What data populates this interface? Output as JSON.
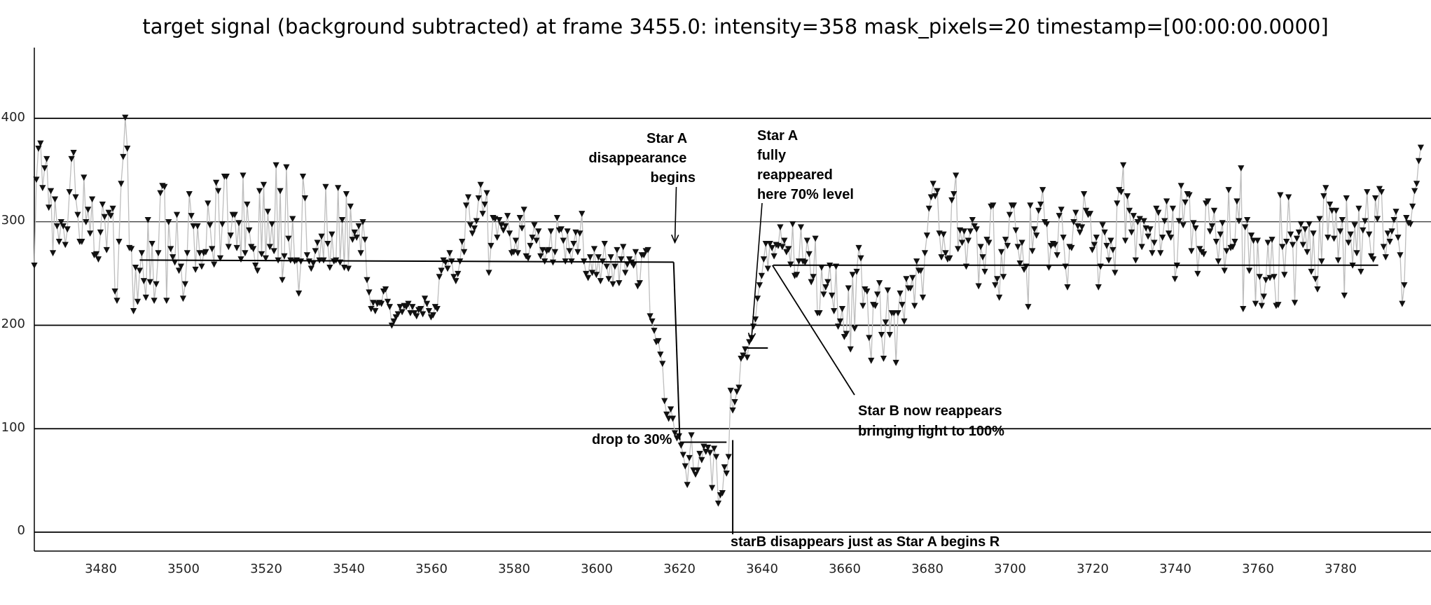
{
  "chart_data": {
    "type": "scatter",
    "title": "target signal (background subtracted) at frame 3455.0: intensity=358 mask_pixels=20 timestamp=[00:00:00.0000]",
    "xlabel": "",
    "ylabel": "",
    "xlim": [
      3461,
      3788
    ],
    "ylim": [
      -10,
      460
    ],
    "grid": "horizontal",
    "y_gridlines": [
      0,
      100,
      200,
      300,
      400
    ],
    "x_ticks": [
      3480,
      3500,
      3520,
      3540,
      3560,
      3580,
      3600,
      3620,
      3640,
      3660,
      3680,
      3700,
      3720,
      3740,
      3760,
      3780
    ],
    "y_ticks": [
      0,
      100,
      200,
      300,
      400
    ],
    "x_tick_labels": [
      "3480",
      "3500",
      "3520",
      "3540",
      "3560",
      "3580",
      "3600",
      "3620",
      "3640",
      "3660",
      "3680",
      "3700",
      "3720",
      "3740",
      "3760",
      "3780"
    ],
    "y_tick_labels": [
      "0",
      "100",
      "200",
      "300",
      "400"
    ],
    "marker": "triangle-down",
    "series": [
      {
        "x_start": 3461,
        "x_step": 0.5,
        "values": [
          258,
          341,
          371,
          376,
          333,
          352,
          361,
          314,
          330,
          270,
          322,
          296,
          281,
          300,
          296,
          278,
          293,
          329,
          361,
          367,
          324,
          307,
          281,
          281,
          343,
          300,
          312,
          289,
          322,
          268,
          269,
          264,
          290,
          317,
          305,
          273,
          309,
          306,
          313,
          233,
          224,
          281,
          337,
          363,
          401,
          371,
          275,
          274,
          214,
          256,
          223,
          253,
          270,
          243,
          227,
          302,
          242,
          279,
          224,
          240,
          270,
          328,
          335,
          334,
          224,
          300,
          274,
          266,
          261,
          307,
          253,
          257,
          226,
          240,
          270,
          327,
          306,
          296,
          254,
          296,
          270,
          257,
          270,
          271,
          318,
          297,
          274,
          259,
          338,
          330,
          265,
          298,
          344,
          344,
          276,
          287,
          307,
          307,
          275,
          299,
          264,
          345,
          270,
          317,
          292,
          276,
          274,
          258,
          253,
          330,
          269,
          336,
          265,
          310,
          276,
          298,
          272,
          355,
          263,
          330,
          244,
          267,
          353,
          284,
          263,
          303,
          262,
          263,
          231,
          262,
          344,
          323,
          268,
          262,
          255,
          260,
          272,
          280,
          263,
          286,
          263,
          334,
          279,
          256,
          288,
          262,
          263,
          333,
          261,
          302,
          256,
          327,
          255,
          315,
          283,
          290,
          285,
          296,
          270,
          300,
          283,
          244,
          232,
          216,
          222,
          214,
          221,
          222,
          221,
          233,
          235,
          223,
          218,
          200,
          204,
          208,
          211,
          218,
          213,
          219,
          218,
          221,
          212,
          218,
          212,
          209,
          215,
          216,
          211,
          226,
          221,
          214,
          208,
          210,
          218,
          216,
          247,
          253,
          263,
          261,
          255,
          270,
          262,
          247,
          243,
          250,
          262,
          281,
          271,
          316,
          324,
          297,
          289,
          294,
          301,
          323,
          336,
          308,
          317,
          328,
          251,
          277,
          304,
          303,
          285,
          302,
          297,
          292,
          296,
          306,
          289,
          270,
          271,
          282,
          270,
          304,
          294,
          312,
          267,
          265,
          277,
          285,
          297,
          282,
          291,
          267,
          273,
          262,
          272,
          273,
          291,
          261,
          271,
          304,
          292,
          293,
          282,
          262,
          291,
          272,
          262,
          279,
          290,
          271,
          289,
          308,
          262,
          250,
          246,
          266,
          251,
          274,
          249,
          266,
          243,
          262,
          279,
          257,
          245,
          266,
          240,
          257,
          273,
          241,
          264,
          276,
          251,
          259,
          264,
          261,
          258,
          271,
          238,
          241,
          268,
          268,
          272,
          273,
          209,
          204,
          195,
          184,
          185,
          172,
          163,
          127,
          114,
          110,
          119,
          110,
          96,
          91,
          93,
          84,
          75,
          64,
          46,
          72,
          94,
          60,
          56,
          60,
          76,
          70,
          83,
          78,
          82,
          77,
          43,
          81,
          73,
          28,
          36,
          38,
          63,
          57,
          73,
          137,
          118,
          126,
          136,
          140,
          168,
          171,
          177,
          169,
          184,
          188,
          199,
          206,
          226,
          239,
          248,
          264,
          279,
          255,
          279,
          275,
          267,
          278,
          277,
          295,
          276,
          282,
          271,
          274,
          259,
          298,
          248,
          249,
          262,
          295,
          262,
          261,
          282,
          269,
          242,
          247,
          284,
          212,
          212,
          256,
          230,
          237,
          242,
          258,
          229,
          214,
          257,
          199,
          204,
          216,
          189,
          192,
          236,
          177,
          249,
          197,
          252,
          275,
          265,
          219,
          235,
          233,
          188,
          166,
          220,
          219,
          230,
          241,
          191,
          168,
          203,
          234,
          191,
          212,
          212,
          164,
          212,
          231,
          220,
          204,
          245,
          236,
          236,
          246,
          219,
          262,
          253,
          253,
          227,
          270,
          287,
          313,
          324,
          337,
          325,
          330,
          289,
          266,
          288,
          270,
          264,
          265,
          321,
          327,
          345,
          274,
          292,
          280,
          291,
          257,
          282,
          291,
          302,
          296,
          293,
          238,
          276,
          266,
          252,
          283,
          280,
          315,
          316,
          239,
          245,
          227,
          271,
          247,
          283,
          277,
          307,
          316,
          316,
          292,
          276,
          260,
          280,
          254,
          257,
          218,
          316,
          272,
          293,
          287,
          311,
          317,
          331,
          300,
          298,
          256,
          277,
          279,
          278,
          268,
          306,
          312,
          285,
          257,
          237,
          276,
          275,
          300,
          309,
          296,
          290,
          295,
          327,
          311,
          307,
          308,
          273,
          278,
          285,
          237,
          257,
          297,
          290,
          277,
          263,
          282,
          273,
          251,
          318,
          331,
          329,
          355,
          282,
          325,
          311,
          290,
          306,
          263,
          300,
          303,
          276,
          301,
          294,
          286,
          293,
          270,
          280,
          313,
          309,
          270,
          285,
          301,
          320,
          289,
          285,
          313,
          245,
          258,
          301,
          335,
          297,
          319,
          327,
          326,
          272,
          299,
          294,
          250,
          274,
          271,
          269,
          318,
          320,
          291,
          296,
          311,
          281,
          262,
          288,
          299,
          253,
          272,
          331,
          275,
          276,
          281,
          320,
          301,
          352,
          216,
          295,
          302,
          253,
          287,
          282,
          221,
          282,
          247,
          219,
          228,
          244,
          280,
          246,
          283,
          247,
          219,
          220,
          326,
          276,
          249,
          281,
          324,
          288,
          278,
          222,
          284,
          290,
          298,
          278,
          293,
          271,
          298,
          252,
          289,
          245,
          235,
          303,
          262,
          325,
          333,
          285,
          317,
          311,
          284,
          311,
          263,
          291,
          302,
          229,
          323,
          280,
          288,
          258,
          297,
          270,
          313,
          252,
          292,
          301,
          329,
          288,
          267,
          264,
          323,
          303,
          332,
          329,
          276,
          266,
          289,
          281,
          291,
          302,
          310,
          285,
          268,
          221,
          239,
          304,
          299,
          298,
          315,
          330,
          337,
          359,
          372
        ]
      }
    ],
    "reference_lines": [
      {
        "x": [
          3486.5,
          3615.7
        ],
        "y": [
          263,
          261
        ]
      },
      {
        "x": [
          3615.7,
          3617.2
        ],
        "y": [
          261,
          89
        ]
      },
      {
        "x": [
          3617.2,
          3628.5
        ],
        "y": [
          87,
          87
        ]
      },
      {
        "x": [
          3630,
          3630
        ],
        "y": [
          89,
          -2
        ]
      },
      {
        "x": [
          3633.5,
          3638.5
        ],
        "y": [
          178,
          178
        ]
      },
      {
        "x": [
          3639.8,
          3786.2
        ],
        "y": [
          258,
          258
        ]
      }
    ],
    "annotations": [
      {
        "lines": [
          "Star A",
          "disappearance",
          "begins"
        ],
        "arrow_to": [
          3616,
          280
        ]
      },
      {
        "lines": [
          "Star A",
          "fully",
          "reappeared",
          "here 70% level"
        ],
        "arrow_to": [
          3634.5,
          185
        ]
      },
      {
        "lines": [
          "Star B now reappears",
          "bringing light to 100%"
        ],
        "arrow_to": [
          3639.6,
          258
        ]
      },
      {
        "lines": [
          "drop to 30%"
        ]
      },
      {
        "lines": [
          "starB disappears just as Star A begins R"
        ]
      }
    ],
    "colors": {
      "marker": "#111111",
      "connecting_line": "#bdbdbd",
      "gridline": "#000000",
      "background": "#ffffff"
    }
  }
}
